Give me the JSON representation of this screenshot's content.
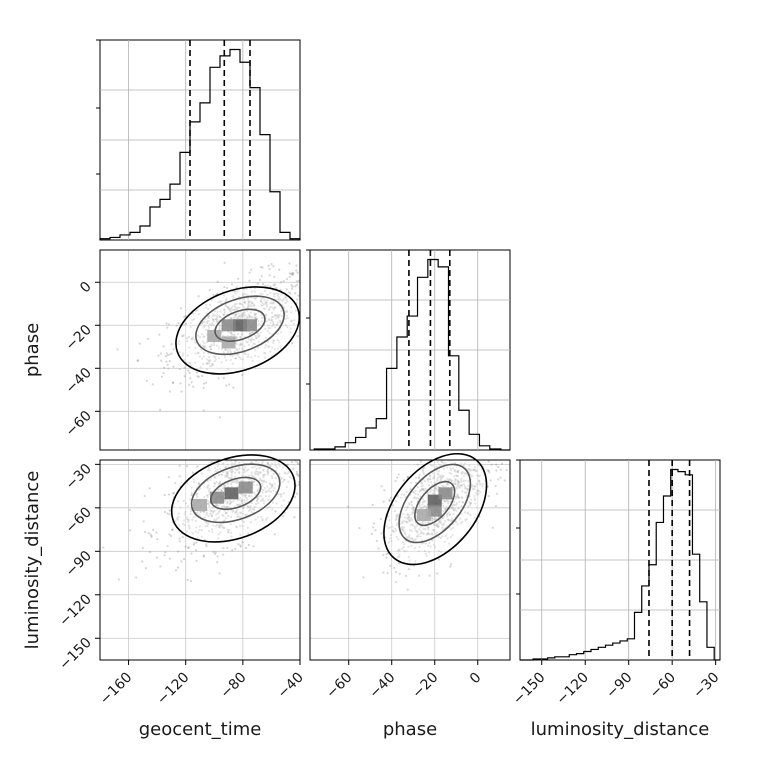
{
  "chart_data": {
    "type": "corner",
    "parameters": [
      "geocent_time",
      "phase",
      "luminosity_distance"
    ],
    "axis_labels": {
      "x": [
        "geocent_time",
        "phase",
        "luminosity_distance"
      ],
      "y": [
        "",
        "phase",
        "luminosity_distance"
      ]
    },
    "ranges": {
      "geocent_time": [
        -180,
        -40
      ],
      "phase": [
        -78,
        15
      ],
      "luminosity_distance": [
        -165,
        -27
      ]
    },
    "ticks": {
      "geocent_time": [
        -160,
        -120,
        -80,
        -40
      ],
      "phase": [
        -60,
        -40,
        -20,
        0
      ],
      "luminosity_distance": [
        -150,
        -120,
        -90,
        -60,
        -30
      ]
    },
    "tick_labels": {
      "geocent_time": [
        "−160",
        "−120",
        "−80",
        "−40"
      ],
      "phase": [
        "−60",
        "−40",
        "−20",
        "0"
      ],
      "luminosity_distance": [
        "−150",
        "−120",
        "−90",
        "−60",
        "−30"
      ]
    },
    "quantiles": {
      "geocent_time": [
        -117,
        -93,
        -75
      ],
      "phase": [
        -32,
        -22,
        -13
      ],
      "luminosity_distance": [
        -76,
        -60,
        -48
      ]
    },
    "histograms": {
      "geocent_time": {
        "edges": [
          -180,
          -173,
          -166,
          -159,
          -152,
          -145,
          -138,
          -131,
          -124,
          -117,
          -110,
          -103,
          -96,
          -89,
          -82,
          -75,
          -68,
          -61,
          -54,
          -47,
          -40
        ],
        "counts": [
          1,
          2,
          4,
          6,
          11,
          26,
          32,
          44,
          69,
          93,
          108,
          136,
          145,
          150,
          140,
          120,
          83,
          38,
          6,
          1
        ]
      },
      "phase": {
        "edges": [
          -76,
          -71.2,
          -66.4,
          -61.6,
          -56.8,
          -52,
          -47.2,
          -42.4,
          -37.6,
          -32.8,
          -28,
          -23.2,
          -18.4,
          -13.6,
          -8.8,
          -4,
          0.8,
          5.6,
          10.8,
          15
        ],
        "counts": [
          1,
          1,
          3,
          7,
          12,
          21,
          30,
          78,
          108,
          128,
          165,
          182,
          175,
          90,
          38,
          15,
          4,
          1,
          0
        ]
      },
      "luminosity_distance": {
        "edges": [
          -165,
          -161,
          -156,
          -151,
          -146,
          -141,
          -136,
          -131,
          -126,
          -121,
          -116,
          -111,
          -106,
          -101,
          -96,
          -91,
          -86,
          -81,
          -76,
          -71,
          -66,
          -61,
          -56,
          -51,
          -46,
          -41,
          -36,
          -31,
          -27
        ],
        "counts": [
          0,
          0,
          1,
          1,
          2,
          3,
          3,
          5,
          6,
          8,
          10,
          12,
          14,
          16,
          18,
          20,
          45,
          70,
          90,
          130,
          155,
          180,
          178,
          175,
          100,
          55,
          12,
          0
        ]
      }
    },
    "hist2d": [
      {
        "x": "geocent_time",
        "y": "phase",
        "center": [
          -82,
          -20
        ],
        "density_peak_cells": [
          [
            -82,
            -20
          ],
          [
            -90,
            -20
          ],
          [
            -75,
            -20
          ],
          [
            -100,
            -25
          ],
          [
            -90,
            -28
          ]
        ],
        "contour_levels": [
          "0.39",
          "0.86",
          "0.99"
        ]
      },
      {
        "x": "geocent_time",
        "y": "luminosity_distance",
        "center": [
          -85,
          -50
        ],
        "density_peak_cells": [
          [
            -88,
            -50
          ],
          [
            -98,
            -53
          ],
          [
            -78,
            -46
          ],
          [
            -110,
            -58
          ]
        ],
        "contour_levels": [
          "0.39",
          "0.86",
          "0.99"
        ]
      },
      {
        "x": "phase",
        "y": "luminosity_distance",
        "center": [
          -20,
          -57
        ],
        "density_peak_cells": [
          [
            -20,
            -55
          ],
          [
            -20,
            -62
          ],
          [
            -15,
            -50
          ],
          [
            -25,
            -65
          ]
        ],
        "contour_levels": [
          "0.39",
          "0.86",
          "0.99"
        ]
      }
    ],
    "grid": true,
    "legend": "none"
  }
}
